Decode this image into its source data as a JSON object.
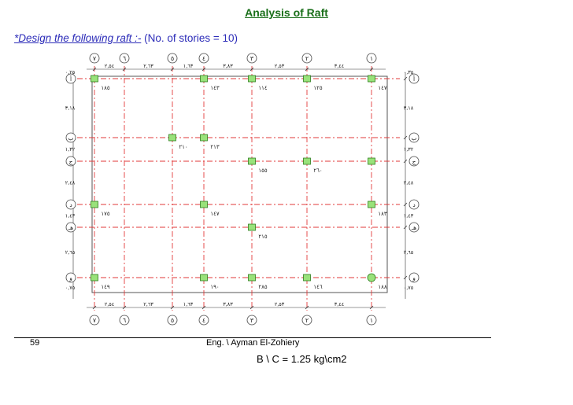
{
  "header": {
    "title": "Analysis of Raft",
    "subtitle_lead": "*Design the following raft :-",
    "subtitle_rest": " (No. of stories = 10)"
  },
  "footer": {
    "page": "59",
    "author": "Eng. \\ Ayman El-Zohiery",
    "bearing": "B \\ C = 1.25 kg\\cm2"
  },
  "plan": {
    "colors": {
      "grid": "#e23a3a",
      "column_fill": "#99e27a",
      "column_stroke": "#2e7d1e",
      "outline": "#555555",
      "dim": "#333333"
    },
    "axis_labels_top": [
      "٧",
      "٦",
      "٥",
      "٤",
      "٣",
      "٢",
      "١"
    ],
    "axis_labels_left": [
      "أ",
      "ب",
      "ج",
      "د",
      "هـ",
      "و"
    ],
    "dims_top": [
      "٢,٥٤",
      "٢,٦٣",
      "١,٦٣",
      "٣,٨٣",
      "٢,٥٣",
      "٣,٤٤"
    ],
    "dims_left": [
      "٣,١٨",
      "١,٣٢",
      "٢,٤٨",
      "١,٤٣",
      "٢,٦٥"
    ],
    "dims_right": [
      "٣,١٨",
      "١,٣٢",
      "٢,٤٨",
      "١,٤٣",
      "٢,٦٥"
    ],
    "edge_left_top": "٠,٢٥",
    "edge_left_bottom": "٠,٧٥",
    "edge_right_top": "٠,٣٥",
    "edge_right_bottom": "٠,٧٥",
    "columns": [
      {
        "col": 0,
        "row": 0,
        "label": "١٨٥",
        "shape": "rect"
      },
      {
        "col": 2,
        "row": 0,
        "label": "١٤٣",
        "shape": "rect"
      },
      {
        "col": 3,
        "row": 0,
        "label": "١١٤",
        "shape": "rect"
      },
      {
        "col": 4,
        "row": 0,
        "label": "١٢٥",
        "shape": "rect"
      },
      {
        "col": 5,
        "row": 0,
        "label": "١٤٧",
        "shape": "rect"
      },
      {
        "col": 1,
        "row": 1,
        "label": "٢١٠",
        "shape": "rect"
      },
      {
        "col": 2,
        "row": 1,
        "label": "٢١٣",
        "shape": "rect"
      },
      {
        "col": 3,
        "row": 2,
        "label": "١٥٥",
        "shape": "rect"
      },
      {
        "col": 4,
        "row": 2,
        "label": "٢٦٠",
        "shape": "rect"
      },
      {
        "col": 5,
        "row": 2,
        "label": "",
        "shape": "rect"
      },
      {
        "col": 0,
        "row": 3,
        "label": "١٧٥",
        "shape": "rect"
      },
      {
        "col": 2,
        "row": 3,
        "label": "١٤٧",
        "shape": "rect"
      },
      {
        "col": 5,
        "row": 3,
        "label": "١٨٣",
        "shape": "rect"
      },
      {
        "col": 3,
        "row": 4,
        "label": "٢١٥",
        "shape": "rect"
      },
      {
        "col": 0,
        "row": 5,
        "label": "١٤٩",
        "shape": "rect"
      },
      {
        "col": 2,
        "row": 5,
        "label": "١٩٠",
        "shape": "rect"
      },
      {
        "col": 3,
        "row": 5,
        "label": "٢٨٥",
        "shape": "rect"
      },
      {
        "col": 4,
        "row": 5,
        "label": "١٤٦",
        "shape": "rect"
      },
      {
        "col": 5,
        "row": 5,
        "label": "١٨٨",
        "shape": "circle"
      }
    ]
  }
}
